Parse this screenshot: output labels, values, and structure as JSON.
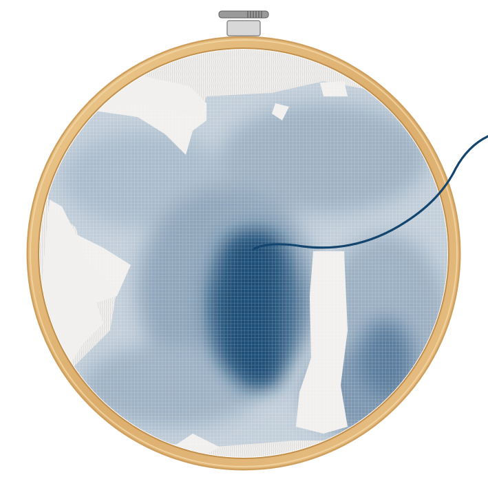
{
  "image": {
    "subject": "embroidery-hoop-cross-stitch",
    "hoop": {
      "material": "bamboo",
      "color": "#e2b97a"
    },
    "fabric": {
      "color": "#f1f0ef"
    },
    "stitch_colors": {
      "light": "#c3cfda",
      "mid": "#8fa6bb",
      "deep": "#4a6f92",
      "darkest": "#174a73"
    },
    "thread": {
      "color": "#13456f"
    }
  }
}
